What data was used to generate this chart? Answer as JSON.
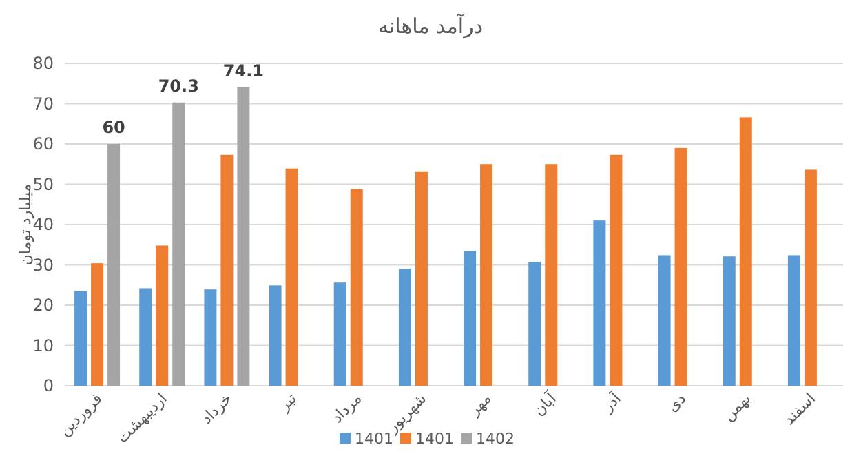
{
  "chart_data": {
    "type": "bar",
    "title": "درآمد ماهانه",
    "ylabel": "میلیارد تومان",
    "categories": [
      "فروردین",
      "اردیبهشت",
      "خرداد",
      "تیر",
      "مرداد",
      "شهریور",
      "مهر",
      "آبان",
      "آذر",
      "دی",
      "بهمن",
      "اسفند"
    ],
    "series": [
      {
        "name": "1401",
        "color": "#5b9bd5",
        "values": [
          23.5,
          24.2,
          23.9,
          24.9,
          25.6,
          29.0,
          33.4,
          30.7,
          41.0,
          32.4,
          32.1,
          32.4
        ]
      },
      {
        "name": "1401",
        "color": "#ed7d31",
        "values": [
          30.4,
          34.8,
          57.3,
          53.9,
          48.8,
          53.2,
          55.0,
          55.0,
          57.3,
          59.0,
          66.6,
          53.6
        ]
      },
      {
        "name": "1402",
        "color": "#a5a5a5",
        "values": [
          60,
          70.3,
          74.1,
          null,
          null,
          null,
          null,
          null,
          null,
          null,
          null,
          null
        ],
        "value_labels": [
          "60",
          "70.3",
          "74.1",
          null,
          null,
          null,
          null,
          null,
          null,
          null,
          null,
          null
        ]
      }
    ],
    "ylim": [
      0,
      80
    ],
    "yticks": [
      0,
      10,
      20,
      30,
      40,
      50,
      60,
      70,
      80
    ],
    "grid": "y",
    "legend": "bottom"
  }
}
